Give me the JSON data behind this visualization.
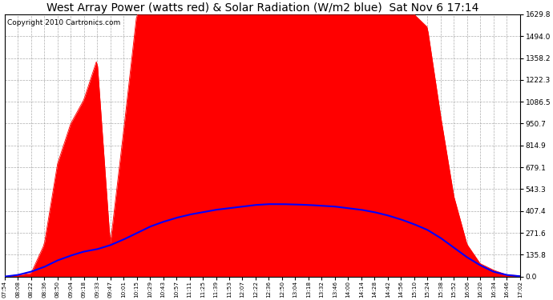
{
  "title": "West Array Power (watts red) & Solar Radiation (W/m2 blue)  Sat Nov 6 17:14",
  "copyright": "Copyright 2010 Cartronics.com",
  "x_labels": [
    "07:54",
    "08:08",
    "08:22",
    "08:36",
    "08:50",
    "09:04",
    "09:18",
    "09:33",
    "09:47",
    "10:01",
    "10:15",
    "10:29",
    "10:43",
    "10:57",
    "11:11",
    "11:25",
    "11:39",
    "11:53",
    "12:07",
    "12:22",
    "12:36",
    "12:50",
    "13:04",
    "13:18",
    "13:32",
    "13:46",
    "14:00",
    "14:14",
    "14:28",
    "14:42",
    "14:56",
    "15:10",
    "15:24",
    "15:38",
    "15:52",
    "16:06",
    "16:20",
    "16:34",
    "16:46",
    "17:02"
  ],
  "y_ticks": [
    0.0,
    135.8,
    271.6,
    407.4,
    543.3,
    679.1,
    814.9,
    950.7,
    1086.5,
    1222.3,
    1358.2,
    1494.0,
    1629.8
  ],
  "y_max": 1629.8,
  "y_min": 0.0,
  "power_color": "#ff0000",
  "radiation_color": "#0000ff",
  "background_color": "#ffffff",
  "plot_bg_color": "#ffffff",
  "grid_color": "#999999",
  "title_fontsize": 10,
  "copyright_fontsize": 6.5,
  "figwidth": 6.9,
  "figheight": 3.75,
  "dpi": 100
}
